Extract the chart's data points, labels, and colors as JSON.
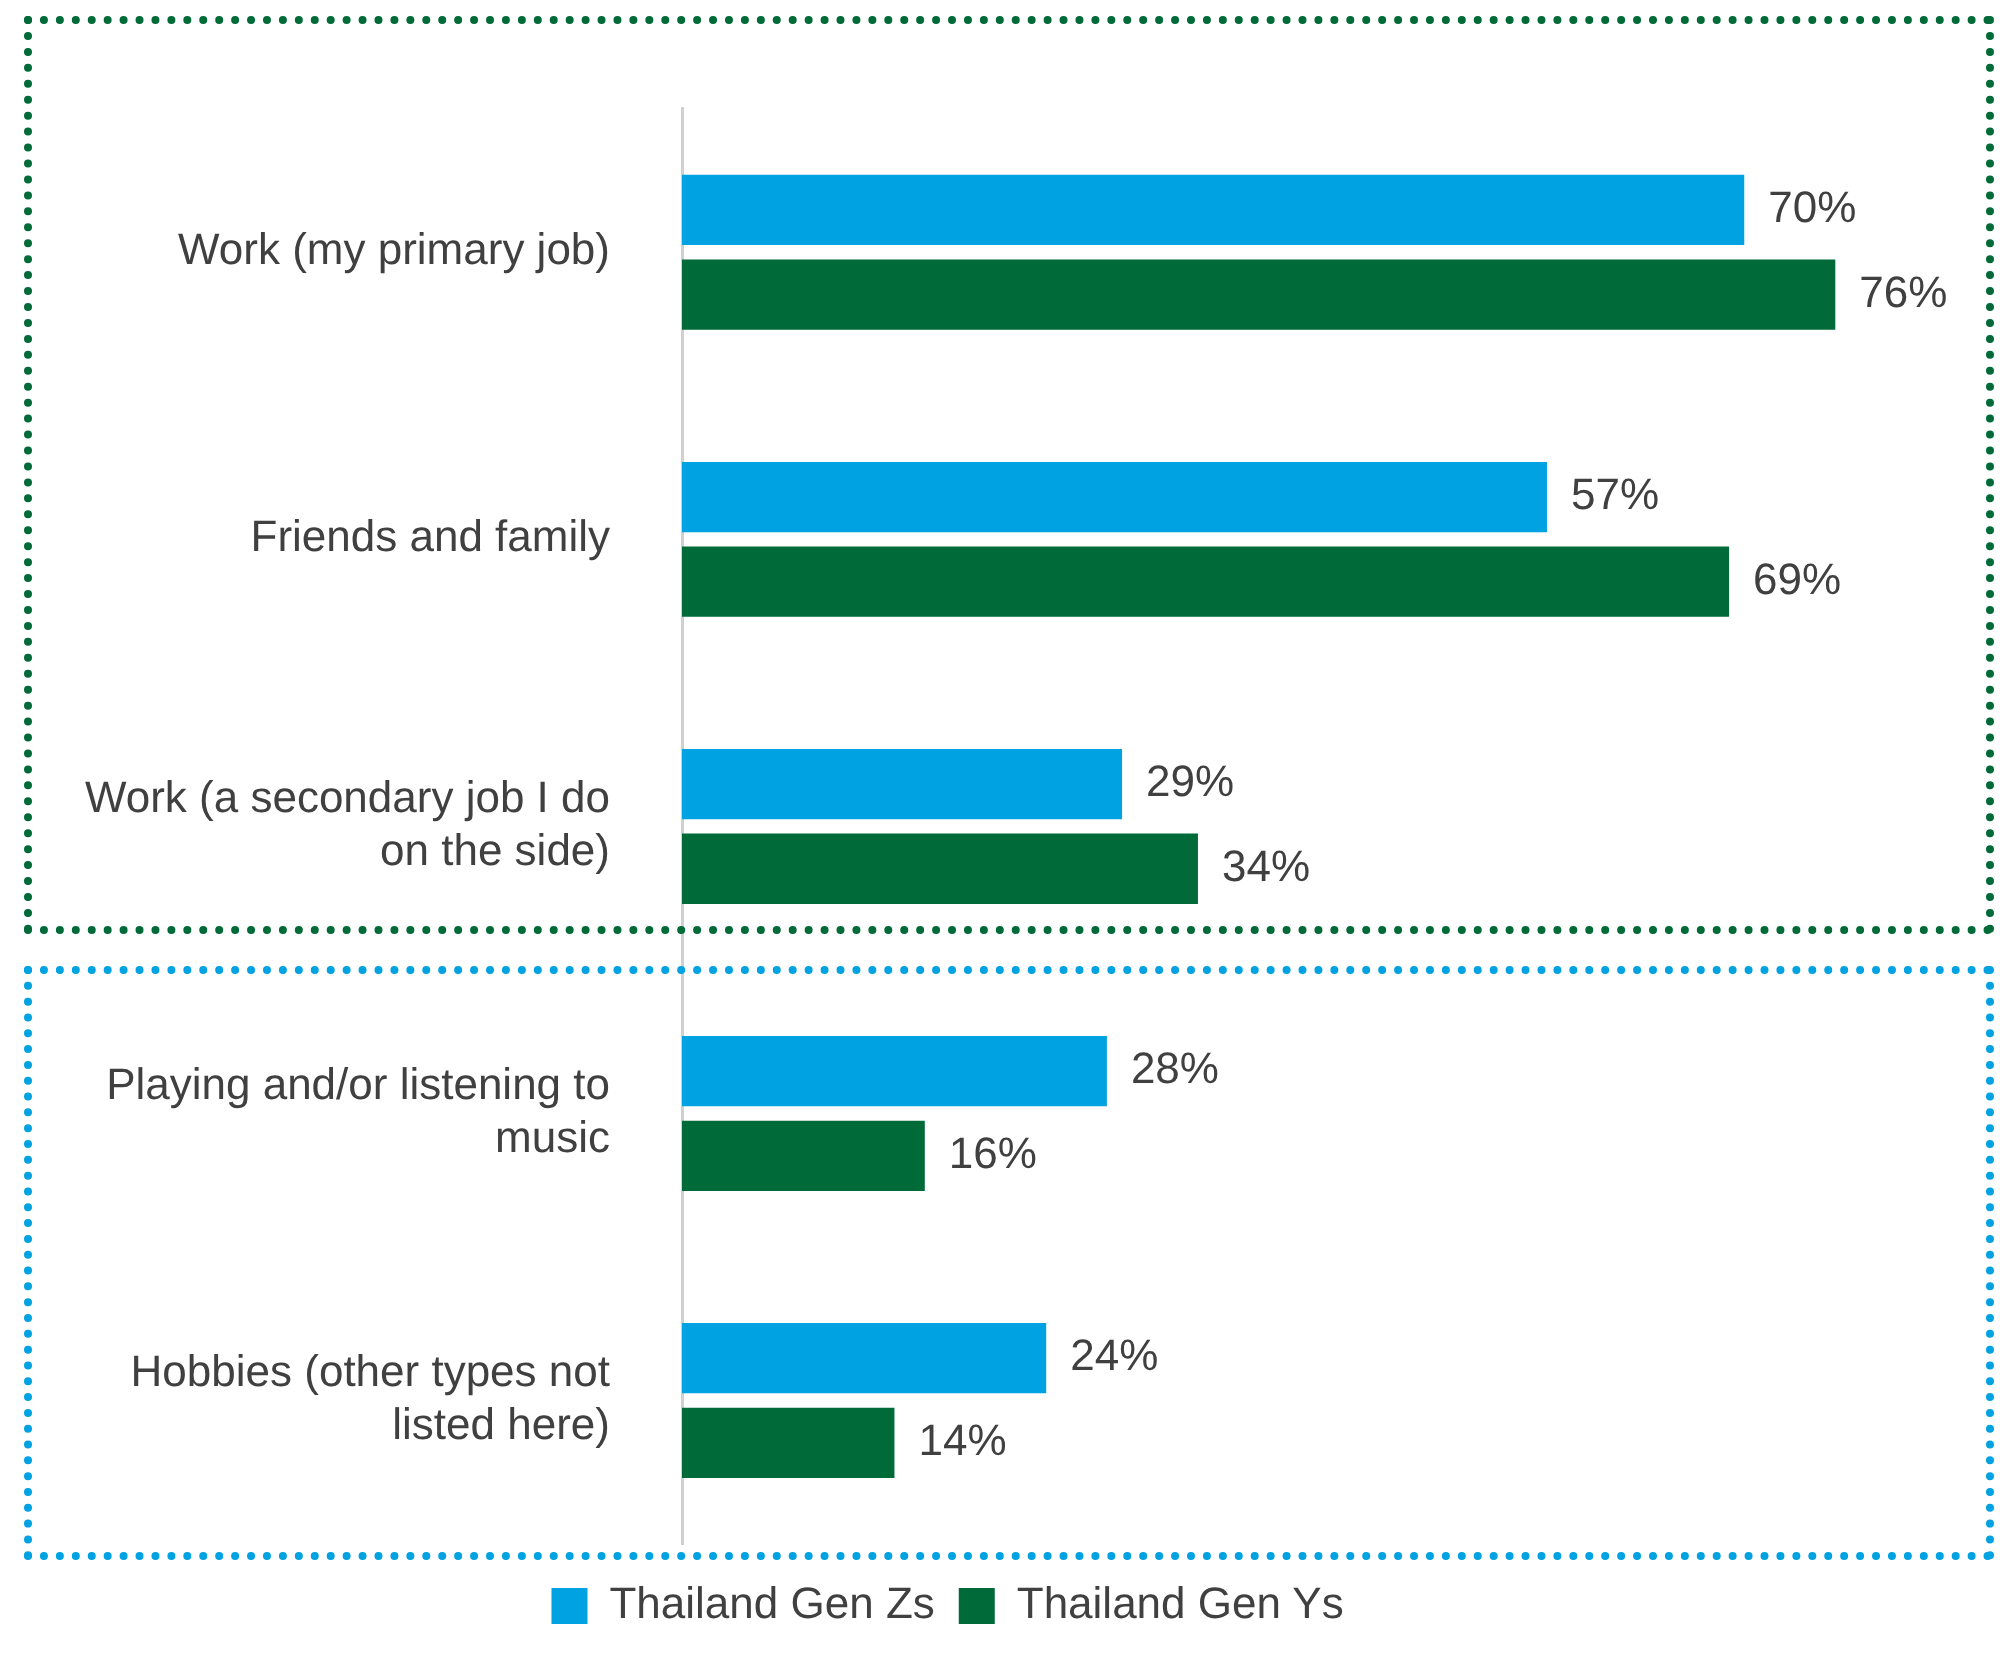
{
  "chart_data": {
    "type": "bar",
    "orientation": "horizontal",
    "categories": [
      "Work (my primary job)",
      "Friends and family",
      "Work (a secondary job I do on the side)",
      "Playing and/or listening to music",
      "Hobbies (other types not listed here)"
    ],
    "series": [
      {
        "name": "Thailand Gen Zs",
        "color": "#00a2e1",
        "values": [
          70,
          57,
          29,
          28,
          24
        ],
        "value_labels": [
          "70%",
          "57%",
          "29%",
          "28%",
          "24%"
        ]
      },
      {
        "name": "Thailand Gen Ys",
        "color": "#006a38",
        "values": [
          76,
          69,
          34,
          16,
          14
        ],
        "value_labels": [
          "76%",
          "69%",
          "34%",
          "16%",
          "14%"
        ]
      }
    ],
    "tick_labels": "y",
    "grid": false,
    "legend": "bottom"
  }
}
